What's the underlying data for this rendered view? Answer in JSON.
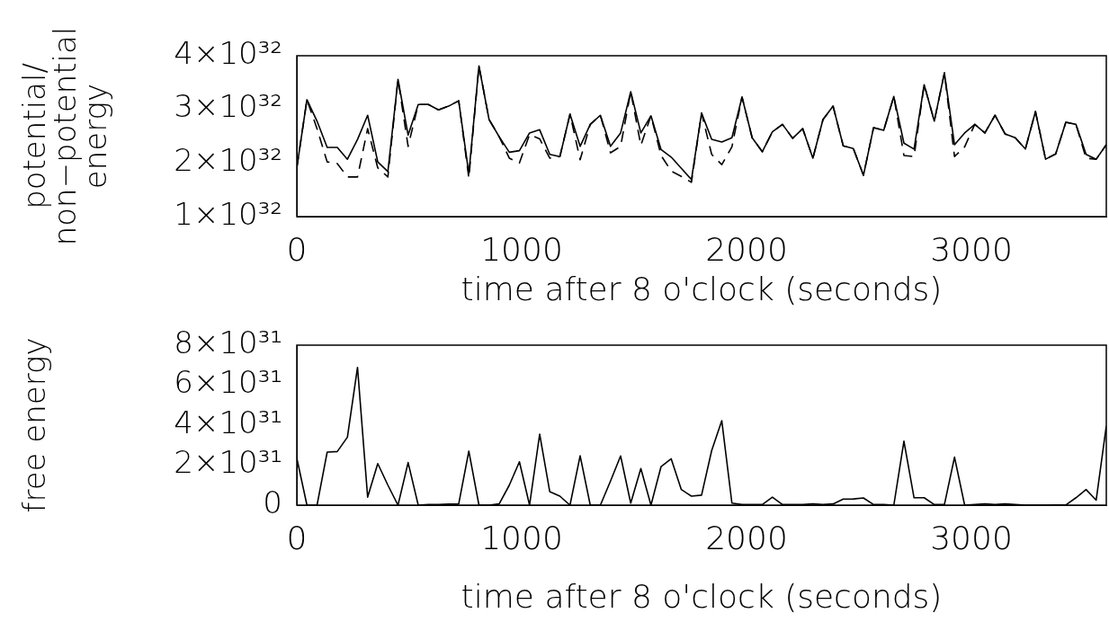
{
  "chart_data": [
    {
      "type": "line",
      "ylabel": "potential/\nnon−potential\nenergy",
      "xlabel": "time after 8 o'clock (seconds)",
      "xlim": [
        0,
        3600
      ],
      "xticks": [
        0,
        1000,
        2000,
        3000
      ],
      "ylim": [
        1e+32,
        4e+32
      ],
      "yticks": [
        {
          "value": 1e+32,
          "label": "1×10³²"
        },
        {
          "value": 2e+32,
          "label": "2×10³²"
        },
        {
          "value": 3e+32,
          "label": "3×10³²"
        },
        {
          "value": 4e+32,
          "label": "4×10³²"
        }
      ],
      "x": [
        0,
        45,
        90,
        135,
        180,
        225,
        270,
        315,
        360,
        405,
        450,
        495,
        540,
        585,
        630,
        675,
        720,
        765,
        810,
        855,
        900,
        945,
        990,
        1035,
        1080,
        1125,
        1170,
        1215,
        1260,
        1305,
        1350,
        1395,
        1440,
        1485,
        1530,
        1575,
        1620,
        1665,
        1710,
        1755,
        1800,
        1845,
        1890,
        1935,
        1980,
        2025,
        2070,
        2115,
        2160,
        2205,
        2250,
        2295,
        2340,
        2385,
        2430,
        2475,
        2520,
        2565,
        2610,
        2655,
        2700,
        2745,
        2790,
        2835,
        2880,
        2925,
        2970,
        3015,
        3060,
        3105,
        3150,
        3195,
        3240,
        3285,
        3330,
        3375,
        3420,
        3465,
        3510,
        3555,
        3600
      ],
      "series": [
        {
          "color": "#000000",
          "line_style": "solid",
          "values": [
            1.91e+32,
            3.18e+32,
            2.78e+32,
            2.29e+32,
            2.29e+32,
            2.07e+32,
            2.44e+32,
            2.89e+32,
            2.02e+32,
            1.84e+32,
            3.56e+32,
            2.52e+32,
            3.09e+32,
            3.09e+32,
            2.99e+32,
            3.06e+32,
            3.16e+32,
            1.8e+32,
            3.81e+32,
            2.81e+32,
            2.49e+32,
            2.2e+32,
            2.23e+32,
            2.56e+32,
            2.62e+32,
            2.16e+32,
            2.12e+32,
            2.91e+32,
            2.31e+32,
            2.72e+32,
            2.89e+32,
            2.31e+32,
            2.56e+32,
            3.33e+32,
            2.56e+32,
            2.88e+32,
            2.25e+32,
            2.11e+32,
            1.9e+32,
            1.69e+32,
            2.93e+32,
            2.44e+32,
            2.39e+32,
            2.47e+32,
            3.23e+32,
            2.47e+32,
            2.21e+32,
            2.58e+32,
            2.72e+32,
            2.46e+32,
            2.64e+32,
            2.09e+32,
            2.81e+32,
            3.06e+32,
            2.32e+32,
            2.27e+32,
            1.77e+32,
            2.66e+32,
            2.61e+32,
            3.24e+32,
            2.37e+32,
            2.26e+32,
            3.46e+32,
            2.78e+32,
            3.68e+32,
            2.34e+32,
            2.56e+32,
            2.72e+32,
            2.56e+32,
            2.89e+32,
            2.54e+32,
            2.47e+32,
            2.26e+32,
            2.96e+32,
            2.07e+32,
            2.17e+32,
            2.76e+32,
            2.72e+32,
            2.16e+32,
            2.07e+32,
            2.34e+32
          ]
        },
        {
          "color": "#000000",
          "line_style": "dashed",
          "values": [
            1.91e+32,
            3.18e+32,
            2.64e+32,
            2.02e+32,
            1.99e+32,
            1.74e+32,
            1.74e+32,
            2.64e+32,
            1.91e+32,
            1.74e+32,
            3.56e+32,
            2.31e+32,
            3.09e+32,
            3.09e+32,
            2.99e+32,
            3.06e+32,
            3.16e+32,
            1.72e+32,
            3.81e+32,
            2.81e+32,
            2.49e+32,
            2.09e+32,
            2e+32,
            2.53e+32,
            2.45e+32,
            2.09e+32,
            2.12e+32,
            2.91e+32,
            2.06e+32,
            2.72e+32,
            2.89e+32,
            2.19e+32,
            2.31e+32,
            3.33e+32,
            2.33e+32,
            2.88e+32,
            2.14e+32,
            1.85e+32,
            1.75e+32,
            1.64e+32,
            2.93e+32,
            2.16e+32,
            1.97e+32,
            2.3e+32,
            3.23e+32,
            2.47e+32,
            2.21e+32,
            2.58e+32,
            2.72e+32,
            2.46e+32,
            2.64e+32,
            2.09e+32,
            2.81e+32,
            3.06e+32,
            2.32e+32,
            2.27e+32,
            1.77e+32,
            2.66e+32,
            2.61e+32,
            3.24e+32,
            2.14e+32,
            2.12e+32,
            3.46e+32,
            2.78e+32,
            3.68e+32,
            2.12e+32,
            2.3e+32,
            2.72e+32,
            2.56e+32,
            2.89e+32,
            2.54e+32,
            2.47e+32,
            2.26e+32,
            2.96e+32,
            2.07e+32,
            2.17e+32,
            2.76e+32,
            2.72e+32,
            2.09e+32,
            2.07e+32,
            2.34e+32
          ]
        }
      ]
    },
    {
      "type": "line",
      "ylabel": "free energy",
      "xlabel": "time after 8 o'clock (seconds)",
      "xlim": [
        0,
        3600
      ],
      "xticks": [
        0,
        1000,
        2000,
        3000
      ],
      "ylim": [
        0,
        8e+31
      ],
      "yticks": [
        0,
        {
          "value": 2e+31,
          "label": "2×10³¹"
        },
        {
          "value": 4e+31,
          "label": "4×10³¹"
        },
        {
          "value": 6e+31,
          "label": "6×10³¹"
        },
        {
          "value": 8e+31,
          "label": "8×10³¹"
        }
      ],
      "x": [
        0,
        45,
        90,
        135,
        180,
        225,
        270,
        315,
        360,
        405,
        450,
        495,
        540,
        585,
        630,
        675,
        720,
        765,
        810,
        855,
        900,
        945,
        990,
        1035,
        1080,
        1125,
        1170,
        1215,
        1260,
        1305,
        1350,
        1395,
        1440,
        1485,
        1530,
        1575,
        1620,
        1665,
        1710,
        1755,
        1800,
        1845,
        1890,
        1935,
        1980,
        2025,
        2070,
        2115,
        2160,
        2205,
        2250,
        2295,
        2340,
        2385,
        2430,
        2475,
        2520,
        2565,
        2610,
        2655,
        2700,
        2745,
        2790,
        2835,
        2880,
        2925,
        2970,
        3015,
        3060,
        3105,
        3150,
        3195,
        3240,
        3285,
        3330,
        3375,
        3420,
        3465,
        3510,
        3555,
        3600
      ],
      "series": [
        {
          "color": "#000000",
          "line_style": "solid",
          "values": [
            2.35e+31,
            0,
            0,
            2.65e+31,
            2.68e+31,
            3.4e+31,
            6.89e+31,
            4e+30,
            2.08e+31,
            1e+31,
            0,
            2.13e+31,
            0,
            3e+29,
            3e+29,
            5e+29,
            6e+29,
            2.7e+31,
            0,
            0,
            6e+29,
            1e+31,
            2.17e+31,
            0,
            3.55e+31,
            6.7e+30,
            4.5e+30,
            0,
            2.47e+31,
            0,
            0,
            1.2e+31,
            2.46e+31,
            1e+30,
            1.83e+31,
            0,
            1.93e+31,
            2.32e+31,
            7.8e+30,
            4.5e+30,
            5e+30,
            2.73e+31,
            4.22e+31,
            1e+30,
            3e+29,
            3e+29,
            3e+29,
            4e+30,
            3e+29,
            3e+29,
            3e+29,
            7e+29,
            3e+29,
            6e+29,
            3e+30,
            3.1e+30,
            3.6e+30,
            3e+29,
            3e+29,
            0,
            3.2e+31,
            3.7e+30,
            3.7e+30,
            3e+29,
            3e+29,
            2.4e+31,
            0,
            3e+29,
            7e+29,
            3e+29,
            6e+29,
            3e+29,
            0,
            0,
            0,
            1e+29,
            1e+29,
            3.7e+30,
            7.8e+30,
            2.5e+30,
            3.96e+31
          ]
        }
      ]
    }
  ]
}
